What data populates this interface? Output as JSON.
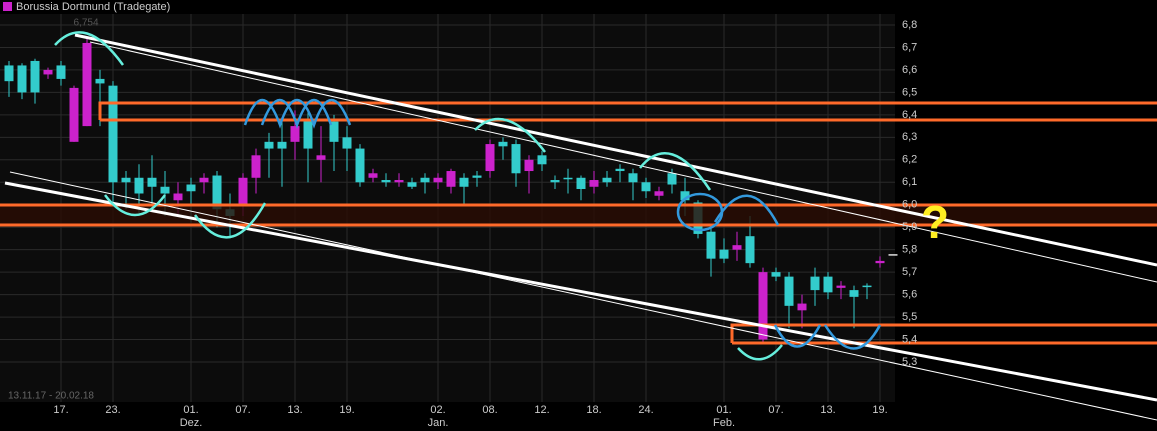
{
  "chart_data": {
    "type": "candlestick",
    "title": "Borussia Dortmund (Tradegate)",
    "date_range": "13.11.17 - 20.02.18",
    "max_label": "6,754",
    "annotation": "?",
    "categories": [
      null,
      null,
      null,
      null,
      "17.",
      null,
      null,
      null,
      "23.",
      null,
      null,
      null,
      null,
      null,
      "01.",
      null,
      null,
      null,
      "07.",
      null,
      null,
      null,
      "13.",
      null,
      null,
      null,
      "19.",
      null,
      null,
      null,
      null,
      null,
      null,
      "02.",
      null,
      null,
      null,
      "08.",
      null,
      null,
      null,
      "12.",
      null,
      null,
      null,
      "18.",
      null,
      null,
      null,
      "24.",
      null,
      null,
      null,
      null,
      null,
      "01.",
      null,
      null,
      null,
      "07.",
      null,
      null,
      null,
      "13.",
      null,
      null,
      null,
      "19.",
      null
    ],
    "sublabels": [
      null,
      null,
      null,
      null,
      null,
      null,
      null,
      null,
      null,
      null,
      null,
      null,
      null,
      null,
      "Dez.",
      null,
      null,
      null,
      null,
      null,
      null,
      null,
      null,
      null,
      null,
      null,
      null,
      null,
      null,
      null,
      null,
      null,
      null,
      "Jan.",
      null,
      null,
      null,
      null,
      null,
      null,
      null,
      null,
      null,
      null,
      null,
      null,
      null,
      null,
      null,
      null,
      null,
      null,
      null,
      null,
      null,
      "Feb.",
      null,
      null,
      null,
      null,
      null,
      null,
      null,
      null,
      null,
      null,
      null,
      null,
      null,
      null
    ],
    "series": [
      {
        "name": "Borussia Dortmund (Tradegate)",
        "open": [
          6.62,
          6.62,
          6.64,
          6.58,
          6.62,
          6.28,
          6.35,
          6.56,
          6.53,
          6.12,
          6.12,
          6.12,
          6.08,
          6.02,
          6.09,
          6.1,
          6.13,
          5.98,
          6.0,
          6.12,
          6.28,
          6.28,
          6.28,
          6.38,
          6.2,
          6.37,
          6.3,
          6.25,
          6.12,
          6.11,
          6.1,
          6.1,
          6.12,
          6.1,
          6.08,
          6.12,
          6.13,
          6.15,
          6.28,
          6.27,
          6.15,
          6.22,
          6.11,
          6.12,
          6.12,
          6.08,
          6.12,
          6.16,
          6.14,
          6.1,
          6.04,
          6.14,
          6.06,
          6.01,
          5.88,
          5.8,
          5.8,
          5.86,
          5.4,
          5.7,
          5.68,
          5.53,
          5.68,
          5.68,
          5.63,
          5.62,
          5.64,
          5.74,
          5.78
        ],
        "high": [
          6.64,
          6.63,
          6.65,
          6.61,
          6.64,
          6.53,
          6.75,
          6.6,
          6.55,
          6.15,
          6.18,
          6.22,
          6.15,
          6.1,
          6.12,
          6.14,
          6.15,
          6.05,
          6.14,
          6.25,
          6.32,
          6.38,
          6.42,
          6.42,
          6.35,
          6.4,
          6.35,
          6.27,
          6.16,
          6.14,
          6.14,
          6.12,
          6.14,
          6.14,
          6.16,
          6.14,
          6.15,
          6.29,
          6.3,
          6.29,
          6.22,
          6.24,
          6.13,
          6.16,
          6.13,
          6.15,
          6.15,
          6.18,
          6.16,
          6.12,
          6.08,
          6.16,
          6.12,
          6.02,
          5.9,
          5.85,
          5.88,
          5.95,
          5.72,
          5.72,
          5.7,
          5.6,
          5.72,
          5.7,
          5.66,
          5.64,
          5.65,
          5.77,
          5.78
        ],
        "low": [
          6.48,
          6.47,
          6.45,
          6.56,
          6.53,
          6.28,
          6.35,
          6.35,
          6.0,
          5.98,
          5.95,
          6.0,
          5.95,
          5.95,
          5.92,
          6.05,
          5.9,
          5.85,
          5.95,
          6.05,
          6.12,
          6.08,
          6.2,
          6.1,
          6.1,
          6.15,
          6.15,
          6.08,
          6.1,
          6.08,
          6.08,
          6.07,
          6.05,
          6.07,
          6.05,
          6.0,
          6.08,
          6.12,
          6.2,
          6.08,
          6.05,
          6.15,
          6.07,
          6.05,
          6.02,
          6.05,
          6.08,
          6.1,
          6.02,
          6.03,
          6.02,
          6.05,
          5.95,
          5.85,
          5.68,
          5.74,
          5.75,
          5.72,
          5.38,
          5.66,
          5.45,
          5.45,
          5.55,
          5.58,
          5.58,
          5.45,
          5.58,
          5.72,
          5.78
        ],
        "close": [
          6.55,
          6.5,
          6.5,
          6.6,
          6.56,
          6.52,
          6.72,
          6.54,
          6.1,
          6.1,
          6.05,
          6.08,
          6.05,
          6.05,
          6.06,
          6.12,
          5.98,
          5.95,
          6.12,
          6.22,
          6.25,
          6.25,
          6.35,
          6.25,
          6.22,
          6.28,
          6.25,
          6.1,
          6.14,
          6.1,
          6.11,
          6.08,
          6.1,
          6.12,
          6.15,
          6.08,
          6.12,
          6.27,
          6.26,
          6.14,
          6.2,
          6.18,
          6.1,
          6.12,
          6.07,
          6.11,
          6.1,
          6.15,
          6.1,
          6.06,
          6.06,
          6.09,
          6.02,
          5.87,
          5.76,
          5.76,
          5.82,
          5.74,
          5.7,
          5.68,
          5.55,
          5.56,
          5.62,
          5.61,
          5.64,
          5.59,
          5.64,
          5.75,
          5.78
        ]
      }
    ],
    "up_color": "#cc22cc",
    "down_color": "#33cccc",
    "ylim": [
      5.19,
      6.91
    ],
    "yticks": [
      {
        "value": 5.3,
        "label": "5,3"
      },
      {
        "value": 5.4,
        "label": "5,4"
      },
      {
        "value": 5.5,
        "label": "5,5"
      },
      {
        "value": 5.6,
        "label": "5,6"
      },
      {
        "value": 5.7,
        "label": "5,7"
      },
      {
        "value": 5.8,
        "label": "5,8"
      },
      {
        "value": 5.9,
        "label": "5,9"
      },
      {
        "value": 6.0,
        "label": "6,0"
      },
      {
        "value": 6.1,
        "label": "6,1"
      },
      {
        "value": 6.2,
        "label": "6,2"
      },
      {
        "value": 6.3,
        "label": "6,3"
      },
      {
        "value": 6.4,
        "label": "6,4"
      },
      {
        "value": 6.5,
        "label": "6,5"
      },
      {
        "value": 6.6,
        "label": "6,6"
      },
      {
        "value": 6.7,
        "label": "6,7"
      },
      {
        "value": 6.8,
        "label": "6,8"
      }
    ],
    "grid": true
  }
}
